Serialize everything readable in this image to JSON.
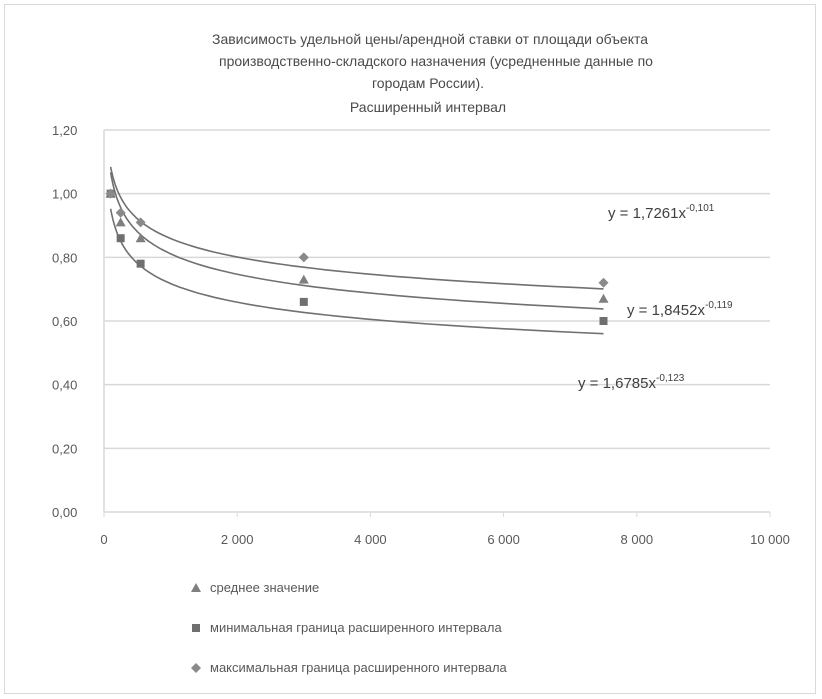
{
  "chart_data": {
    "type": "scatter",
    "title_lines": [
      "Зависимость удельной цены/арендной ставки от площади объекта",
      "производственно-складского назначения  (усредненные данные по",
      "городам России).",
      "Расширенный интервал"
    ],
    "xlabel": "",
    "ylabel": "",
    "xlim": [
      0,
      10000
    ],
    "ylim": [
      0,
      1.2
    ],
    "x_ticks": [
      {
        "value": 0,
        "label": "0"
      },
      {
        "value": 2000,
        "label": "2 000"
      },
      {
        "value": 4000,
        "label": "4 000"
      },
      {
        "value": 6000,
        "label": "6 000"
      },
      {
        "value": 8000,
        "label": "8 000"
      },
      {
        "value": 10000,
        "label": "10 000"
      }
    ],
    "y_ticks": [
      {
        "value": 0,
        "label": "0,00"
      },
      {
        "value": 0.2,
        "label": "0,20"
      },
      {
        "value": 0.4,
        "label": "0,40"
      },
      {
        "value": 0.6,
        "label": "0,60"
      },
      {
        "value": 0.8,
        "label": "0,80"
      },
      {
        "value": 1.0,
        "label": "1,00"
      },
      {
        "value": 1.2,
        "label": "1,20"
      }
    ],
    "grid": true,
    "legend_position": "bottom",
    "series": [
      {
        "name": "среднее значение",
        "marker": "triangle",
        "color": "#7f7f7f",
        "x": [
          100,
          250,
          550,
          3000,
          7500
        ],
        "y": [
          1.0,
          0.91,
          0.86,
          0.73,
          0.67
        ],
        "fit": {
          "a": 1.8452,
          "b": -0.119
        },
        "equation": "y = 1,8452x"
      },
      {
        "name": "минимальная граница расширенного интервала",
        "marker": "square",
        "color": "#6f6f6f",
        "x": [
          100,
          250,
          550,
          3000,
          7500
        ],
        "y": [
          1.0,
          0.86,
          0.78,
          0.66,
          0.6
        ],
        "fit": {
          "a": 1.6785,
          "b": -0.123
        },
        "equation": "y = 1,6785x"
      },
      {
        "name": "максимальная граница расширенного интервала",
        "marker": "diamond",
        "color": "#8a8a8a",
        "x": [
          100,
          250,
          550,
          3000,
          7500
        ],
        "y": [
          1.0,
          0.94,
          0.91,
          0.8,
          0.72
        ],
        "fit": {
          "a": 1.7261,
          "b": -0.101
        },
        "equation": "y = 1,7261x"
      }
    ],
    "annotation_series_order": [
      2,
      0,
      1
    ]
  },
  "colors": {
    "grid": "#d9d9d9",
    "curve": "#707070",
    "frame_border": "#d9d9d9"
  }
}
